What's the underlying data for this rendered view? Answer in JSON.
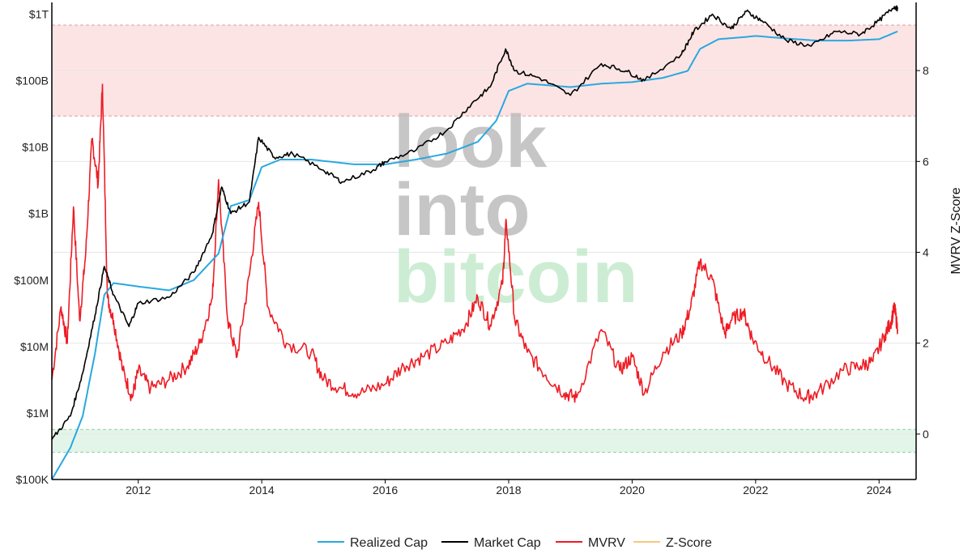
{
  "chart_data": {
    "type": "line",
    "title": "",
    "watermark": [
      "look",
      "into",
      "bitcoin"
    ],
    "colors": {
      "realized": "#29a8e0",
      "market": "#000000",
      "mvrv": "#ee1c24",
      "zscore": "#f7c77a",
      "upper_band": "#fde4e4",
      "lower_band": "#e3f5e9",
      "watermark_gray": "#bdbdbd",
      "watermark_green": "#c4ebcc"
    },
    "x_axis": {
      "xlim": [
        2010.6,
        2024.6
      ],
      "ticks": [
        2012,
        2014,
        2016,
        2018,
        2020,
        2022,
        2024
      ],
      "labels": [
        "2012",
        "2014",
        "2016",
        "2018",
        "2020",
        "2022",
        "2024"
      ]
    },
    "y_left": {
      "scale": "log",
      "ylim": [
        100000,
        1500000000000
      ],
      "ticks": [
        100000,
        1000000,
        10000000,
        100000000,
        1000000000,
        10000000000,
        100000000000,
        1000000000000
      ],
      "labels": [
        "$100K",
        "$1M",
        "$10M",
        "$100M",
        "$1B",
        "$10B",
        "$100B",
        "$1T"
      ]
    },
    "y_right": {
      "ylabel": "MVRV Z-Score",
      "ylim": [
        -1.0,
        9.5
      ],
      "ticks": [
        0,
        2,
        4,
        6,
        8
      ],
      "labels": [
        "0",
        "2",
        "4",
        "6",
        "8"
      ]
    },
    "bands": [
      {
        "name": "overvalued-zone",
        "from": 7.0,
        "to": 9.0
      },
      {
        "name": "undervalued-zone",
        "from": -0.4,
        "to": 0.1
      }
    ],
    "legend": [
      {
        "label": "Realized Cap",
        "color": "#29a8e0",
        "muted": false
      },
      {
        "label": "Market Cap",
        "color": "#000000",
        "muted": false
      },
      {
        "label": "MVRV",
        "color": "#ee1c24",
        "muted": false
      },
      {
        "label": "Z-Score",
        "color": "#f7c77a",
        "muted": true
      }
    ],
    "series": [
      {
        "name": "Market Cap",
        "axis": "left",
        "x": [
          2010.6,
          2010.9,
          2011.1,
          2011.3,
          2011.45,
          2011.6,
          2011.85,
          2012.0,
          2012.5,
          2012.9,
          2013.2,
          2013.35,
          2013.5,
          2013.8,
          2013.95,
          2014.2,
          2014.5,
          2015.0,
          2015.3,
          2015.8,
          2016.0,
          2016.5,
          2017.0,
          2017.4,
          2017.7,
          2017.95,
          2018.1,
          2018.5,
          2019.0,
          2019.5,
          2019.9,
          2020.2,
          2020.8,
          2021.0,
          2021.3,
          2021.6,
          2021.85,
          2022.1,
          2022.5,
          2022.9,
          2023.3,
          2023.7,
          2024.0,
          2024.25,
          2024.3
        ],
        "values": [
          400000,
          900000,
          4000000,
          30000000,
          160000000,
          60000000,
          20000000,
          45000000,
          55000000,
          130000000,
          500000000,
          2500000000,
          1000000000,
          1500000000,
          14000000000,
          7000000000,
          8000000000,
          4500000000,
          3000000000,
          4500000000,
          6000000000,
          9000000000,
          18000000000,
          45000000000,
          80000000000,
          300000000000,
          140000000000,
          110000000000,
          60000000000,
          180000000000,
          140000000000,
          100000000000,
          250000000000,
          550000000000,
          1000000000000,
          600000000000,
          1100000000000,
          800000000000,
          400000000000,
          330000000000,
          550000000000,
          500000000000,
          800000000000,
          1300000000000,
          1200000000000
        ]
      },
      {
        "name": "Realized Cap",
        "axis": "left",
        "x": [
          2010.6,
          2010.9,
          2011.1,
          2011.3,
          2011.45,
          2011.6,
          2012.0,
          2012.5,
          2012.9,
          2013.3,
          2013.5,
          2013.8,
          2014.0,
          2014.3,
          2014.8,
          2015.5,
          2016.0,
          2016.5,
          2017.0,
          2017.5,
          2017.8,
          2018.0,
          2018.3,
          2019.0,
          2019.5,
          2020.0,
          2020.5,
          2020.9,
          2021.1,
          2021.4,
          2021.8,
          2022.0,
          2022.5,
          2023.0,
          2023.5,
          2024.0,
          2024.3
        ],
        "values": [
          100000,
          300000,
          900000,
          8000000,
          60000000,
          90000000,
          80000000,
          70000000,
          100000000,
          250000000,
          1300000000,
          1600000000,
          5000000000,
          6500000000,
          6500000000,
          5500000000,
          5500000000,
          6500000000,
          8000000000,
          12000000000,
          25000000000,
          70000000000,
          90000000000,
          80000000000,
          90000000000,
          95000000000,
          110000000000,
          140000000000,
          300000000000,
          420000000000,
          450000000000,
          470000000000,
          430000000000,
          400000000000,
          400000000000,
          420000000000,
          550000000000
        ]
      },
      {
        "name": "MVRV",
        "axis": "right",
        "x": [
          2010.6,
          2010.75,
          2010.85,
          2010.95,
          2011.05,
          2011.15,
          2011.25,
          2011.35,
          2011.42,
          2011.5,
          2011.6,
          2011.75,
          2011.9,
          2012.0,
          2012.2,
          2012.5,
          2012.8,
          2013.0,
          2013.2,
          2013.3,
          2013.45,
          2013.6,
          2013.8,
          2013.95,
          2014.1,
          2014.4,
          2014.8,
          2015.0,
          2015.3,
          2015.6,
          2016.0,
          2016.3,
          2016.6,
          2017.0,
          2017.3,
          2017.5,
          2017.7,
          2017.9,
          2017.96,
          2018.1,
          2018.3,
          2018.6,
          2018.9,
          2019.1,
          2019.5,
          2019.8,
          2020.0,
          2020.2,
          2020.5,
          2020.8,
          2020.95,
          2021.1,
          2021.3,
          2021.5,
          2021.6,
          2021.8,
          2021.95,
          2022.2,
          2022.5,
          2022.8,
          2023.0,
          2023.4,
          2023.7,
          2023.9,
          2024.1,
          2024.2,
          2024.25,
          2024.3
        ],
        "values": [
          1.2,
          2.8,
          2.0,
          5.0,
          2.5,
          4.0,
          6.5,
          5.5,
          7.7,
          3.0,
          2.5,
          1.4,
          0.8,
          1.4,
          1.0,
          1.2,
          1.5,
          2.0,
          3.0,
          5.6,
          2.5,
          1.7,
          3.5,
          5.1,
          2.8,
          2.0,
          1.8,
          1.2,
          1.0,
          0.9,
          1.1,
          1.5,
          1.7,
          2.0,
          2.4,
          3.0,
          2.4,
          3.3,
          4.7,
          2.5,
          1.8,
          1.3,
          0.9,
          0.8,
          2.3,
          1.4,
          1.7,
          0.9,
          1.8,
          2.2,
          2.8,
          3.8,
          3.4,
          2.2,
          2.5,
          2.7,
          2.1,
          1.6,
          1.1,
          0.8,
          0.9,
          1.4,
          1.5,
          1.6,
          2.2,
          2.5,
          2.8,
          2.3
        ]
      }
    ]
  }
}
